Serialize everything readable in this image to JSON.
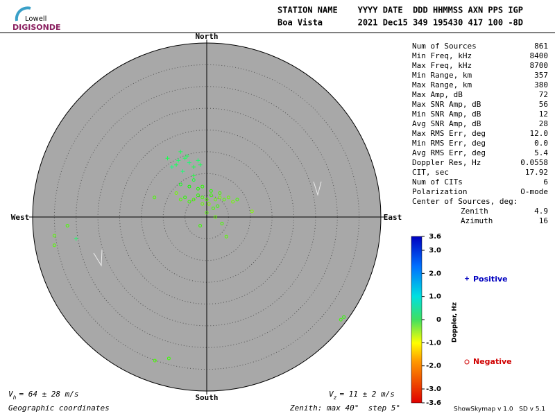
{
  "header": {
    "logo_top": "Lowell",
    "logo_bottom": "DIGISONDE",
    "columns": "STATION NAME    YYYY DATE  DDD HHMMSS AXN PPS IGP",
    "values": "Boa Vista       2021 Dec15 349 195430 417 100 -8D"
  },
  "chart_data": {
    "type": "skymap",
    "directions": {
      "north": "North",
      "south": "South",
      "east": "East",
      "west": "West"
    },
    "rlim": [
      0,
      40
    ],
    "rticks": [
      5,
      10,
      15,
      20,
      25,
      30,
      35,
      40
    ],
    "series": [
      {
        "name": "Negative",
        "color": "#d00000",
        "x": [
          -1,
          0,
          1,
          -2,
          2,
          3,
          -3,
          -4,
          -5,
          -6,
          0.5,
          1.5,
          2.5,
          4,
          5,
          6,
          7,
          -2,
          -4,
          -6,
          -3,
          -1,
          0,
          2,
          3.5,
          4.5,
          -1.5,
          10.4,
          -7,
          -12,
          -32,
          -35,
          -35,
          31.5,
          30.8,
          -11.9,
          -8.7,
          1,
          -1,
          3
        ],
        "y": [
          4.5,
          4,
          5,
          5,
          4,
          4.5,
          4,
          3.5,
          4.5,
          4,
          3,
          2,
          2.5,
          4,
          4.5,
          3.5,
          4,
          6.5,
          7,
          7.5,
          8.5,
          7,
          1,
          0,
          -1.5,
          -4.5,
          -2,
          1.3,
          5.5,
          4.5,
          -2,
          -4.3,
          -6.5,
          -23,
          -23.6,
          -33,
          -32.5,
          6,
          3,
          5.5
        ],
        "doppler": [
          -0.5,
          -0.6,
          -0.4,
          -0.3,
          -0.7,
          -0.8,
          -0.5,
          -0.4,
          -0.3,
          -0.6,
          -0.9,
          -0.5,
          -0.4,
          -0.6,
          -0.7,
          -0.8,
          -0.5,
          -0.2,
          -0.1,
          0.1,
          0.2,
          -0.3,
          -0.6,
          -0.7,
          -0.5,
          -0.6,
          -0.4,
          -0.9,
          -0.8,
          -0.5,
          -0.5,
          -0.6,
          -0.6,
          -0.3,
          -0.4,
          -0.5,
          -0.4,
          -0.3,
          -0.7,
          -0.5
        ]
      },
      {
        "name": "Positive",
        "color": "#0000c0",
        "x": [
          -6.5,
          -5,
          -4,
          -7,
          -8,
          -3,
          -2,
          -4.5,
          -5.5,
          -9,
          -1.5,
          -3,
          -30,
          -6
        ],
        "y": [
          13,
          13.5,
          12.5,
          12,
          11.5,
          11.5,
          13,
          14,
          10.5,
          13.5,
          12,
          9.5,
          -5,
          15
        ],
        "doppler": [
          0.6,
          0.5,
          0.7,
          0.5,
          0.8,
          0.4,
          0.6,
          0.5,
          0.7,
          0.4,
          0.5,
          0.3,
          0.6,
          0.5
        ]
      }
    ],
    "colorbar": {
      "label": "Doppler, Hz",
      "clim": [
        -3.6,
        3.6
      ],
      "ticks": [
        3.6,
        {
          "value": 3,
          "label": "3.0"
        },
        {
          "value": 2,
          "label": "2.0"
        },
        {
          "value": 1,
          "label": "1.0"
        },
        0,
        {
          "value": -1,
          "label": "-1.0"
        },
        {
          "value": -2,
          "label": "-2.0"
        },
        {
          "value": -3,
          "label": "-3.0"
        },
        -3.6
      ]
    }
  },
  "stats": [
    [
      "Num of Sources",
      "861"
    ],
    [
      "Min Freq, kHz",
      "8400"
    ],
    [
      "Max Freq, kHz",
      "8700"
    ],
    [
      "Min Range, km",
      "357"
    ],
    [
      "Max Range, km",
      "380"
    ],
    [
      "Max Amp, dB",
      "72"
    ],
    [
      "Max SNR Amp, dB",
      "56"
    ],
    [
      "Min SNR Amp, dB",
      "12"
    ],
    [
      "Avg SNR Amp, dB",
      "28"
    ],
    [
      "Max RMS Err, deg",
      "12.0"
    ],
    [
      "Min RMS Err, deg",
      "0.0"
    ],
    [
      "Avg RMS Err, deg",
      "5.4"
    ],
    [
      "Doppler Res, Hz",
      "0.0558"
    ],
    [
      "CIT, sec",
      "17.92"
    ],
    [
      "Num of CITs",
      "6"
    ],
    [
      "Polarization",
      "O-mode"
    ]
  ],
  "center": {
    "title": "Center of Sources, deg:",
    "rows": [
      [
        "Zenith",
        "4.9"
      ],
      [
        "Azimuth",
        "16"
      ]
    ]
  },
  "footer": {
    "vh_symbol": "V",
    "vh_sub": "h",
    "vh_text": "= 64 ± 28 m/s",
    "vz_symbol": "V",
    "vz_sub": "z",
    "vz_text": "= 11 ± 2 m/s",
    "coords": "Geographic coordinates",
    "zenith": "Zenith: max 40°  step 5°",
    "version": "ShowSkymap v 1.0   SD v 5.1"
  }
}
